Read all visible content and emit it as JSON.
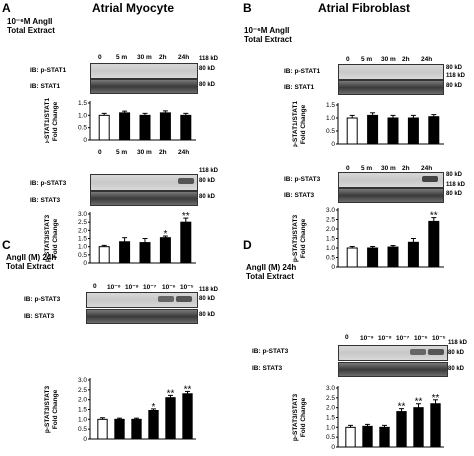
{
  "panels": {
    "A": {
      "letter": "A",
      "title": "Atrial Myocyte",
      "treat1": "10⁻⁶M AngII",
      "treat2": "Total Extract"
    },
    "B": {
      "letter": "B",
      "title": "Atrial Fibroblast",
      "treat1": "10⁻⁶M AngII",
      "treat2": "Total Extract"
    },
    "C": {
      "letter": "C",
      "treat1": "AngII (M) 24h",
      "treat2": "Total Extract"
    },
    "D": {
      "letter": "D",
      "treat1": "AngII (M) 24h",
      "treat2": "Total Extract"
    }
  },
  "lanes_time": [
    "0",
    "5 m",
    "30 m",
    "2h",
    "24h"
  ],
  "lanes_dose": [
    "0",
    "10⁻⁹",
    "10⁻⁸",
    "10⁻⁷",
    "10⁻⁶",
    "10⁻⁵"
  ],
  "blot_labels": {
    "pstat1": "IB: p-STAT1",
    "stat1": "IB: STAT1",
    "pstat3": "IB: p-STAT3",
    "stat3": "IB: STAT3"
  },
  "markers": {
    "m118": "118 kD",
    "m80": "80  kD"
  },
  "ylabels": {
    "stat1": [
      "p-STAT1/STAT1",
      "Fold Change"
    ],
    "stat3": [
      "p-STAT3/STAT3",
      "Fold Change"
    ]
  },
  "sig": {
    "one": "*",
    "two": "**"
  },
  "chart_data": [
    {
      "id": "A-STAT1",
      "type": "bar",
      "categories": [
        "0",
        "5 m",
        "30 m",
        "2h",
        "24h"
      ],
      "values": [
        1.0,
        1.1,
        1.0,
        1.1,
        1.0
      ],
      "errors": [
        0.08,
        0.07,
        0.08,
        0.08,
        0.08
      ],
      "ylim": [
        0,
        1.5
      ],
      "ticks": [
        "0",
        "0.5",
        "1.0",
        "1.5"
      ],
      "sig": [
        "",
        "",
        "",
        "",
        ""
      ]
    },
    {
      "id": "A-STAT3",
      "type": "bar",
      "categories": [
        "0",
        "5 m",
        "30 m",
        "2h",
        "24h"
      ],
      "values": [
        1.0,
        1.3,
        1.25,
        1.55,
        2.5
      ],
      "errors": [
        0.08,
        0.25,
        0.25,
        0.1,
        0.25
      ],
      "ylim": [
        0,
        3.0
      ],
      "ticks": [
        "0",
        "0.5",
        "1.0",
        "1.5",
        "2.0",
        "2.5",
        "3.0"
      ],
      "sig": [
        "",
        "",
        "",
        "*",
        "**"
      ]
    },
    {
      "id": "B-STAT1",
      "type": "bar",
      "categories": [
        "0",
        "5 m",
        "30 m",
        "2h",
        "24h"
      ],
      "values": [
        1.0,
        1.1,
        1.0,
        1.0,
        1.05
      ],
      "errors": [
        0.1,
        0.1,
        0.1,
        0.1,
        0.08
      ],
      "ylim": [
        0,
        1.5
      ],
      "ticks": [
        "0",
        "0.5",
        "1.0",
        "1.5"
      ],
      "sig": [
        "",
        "",
        "",
        "",
        ""
      ]
    },
    {
      "id": "B-STAT3",
      "type": "bar",
      "categories": [
        "0",
        "5 m",
        "30 m",
        "2h",
        "24h"
      ],
      "values": [
        1.0,
        1.0,
        1.05,
        1.3,
        2.4
      ],
      "errors": [
        0.08,
        0.08,
        0.08,
        0.2,
        0.2
      ],
      "ylim": [
        0,
        3.0
      ],
      "ticks": [
        "0",
        "0.5",
        "1.0",
        "1.5",
        "2.0",
        "2.5",
        "3.0"
      ],
      "sig": [
        "",
        "",
        "",
        "",
        "**"
      ]
    },
    {
      "id": "C-STAT3",
      "type": "bar",
      "categories": [
        "0",
        "10⁻⁹",
        "10⁻⁸",
        "10⁻⁷",
        "10⁻⁶",
        "10⁻⁵"
      ],
      "values": [
        1.0,
        1.0,
        1.0,
        1.45,
        2.1,
        2.3
      ],
      "errors": [
        0.08,
        0.06,
        0.06,
        0.08,
        0.12,
        0.12
      ],
      "ylim": [
        0,
        3.0
      ],
      "ticks": [
        "0",
        "0.5",
        "1.0",
        "1.5",
        "2.0",
        "2.5",
        "3.0"
      ],
      "sig": [
        "",
        "",
        "",
        "*",
        "**",
        "**"
      ]
    },
    {
      "id": "D-STAT3",
      "type": "bar",
      "categories": [
        "0",
        "10⁻⁹",
        "10⁻⁸",
        "10⁻⁷",
        "10⁻⁶",
        "10⁻⁵"
      ],
      "values": [
        1.0,
        1.05,
        1.0,
        1.8,
        2.0,
        2.2
      ],
      "errors": [
        0.1,
        0.1,
        0.1,
        0.15,
        0.2,
        0.2
      ],
      "ylim": [
        0,
        3.0
      ],
      "ticks": [
        "0",
        "0.5",
        "1.0",
        "1.5",
        "2.0",
        "2.5",
        "3.0"
      ],
      "sig": [
        "",
        "",
        "",
        "**",
        "**",
        "**"
      ]
    }
  ]
}
